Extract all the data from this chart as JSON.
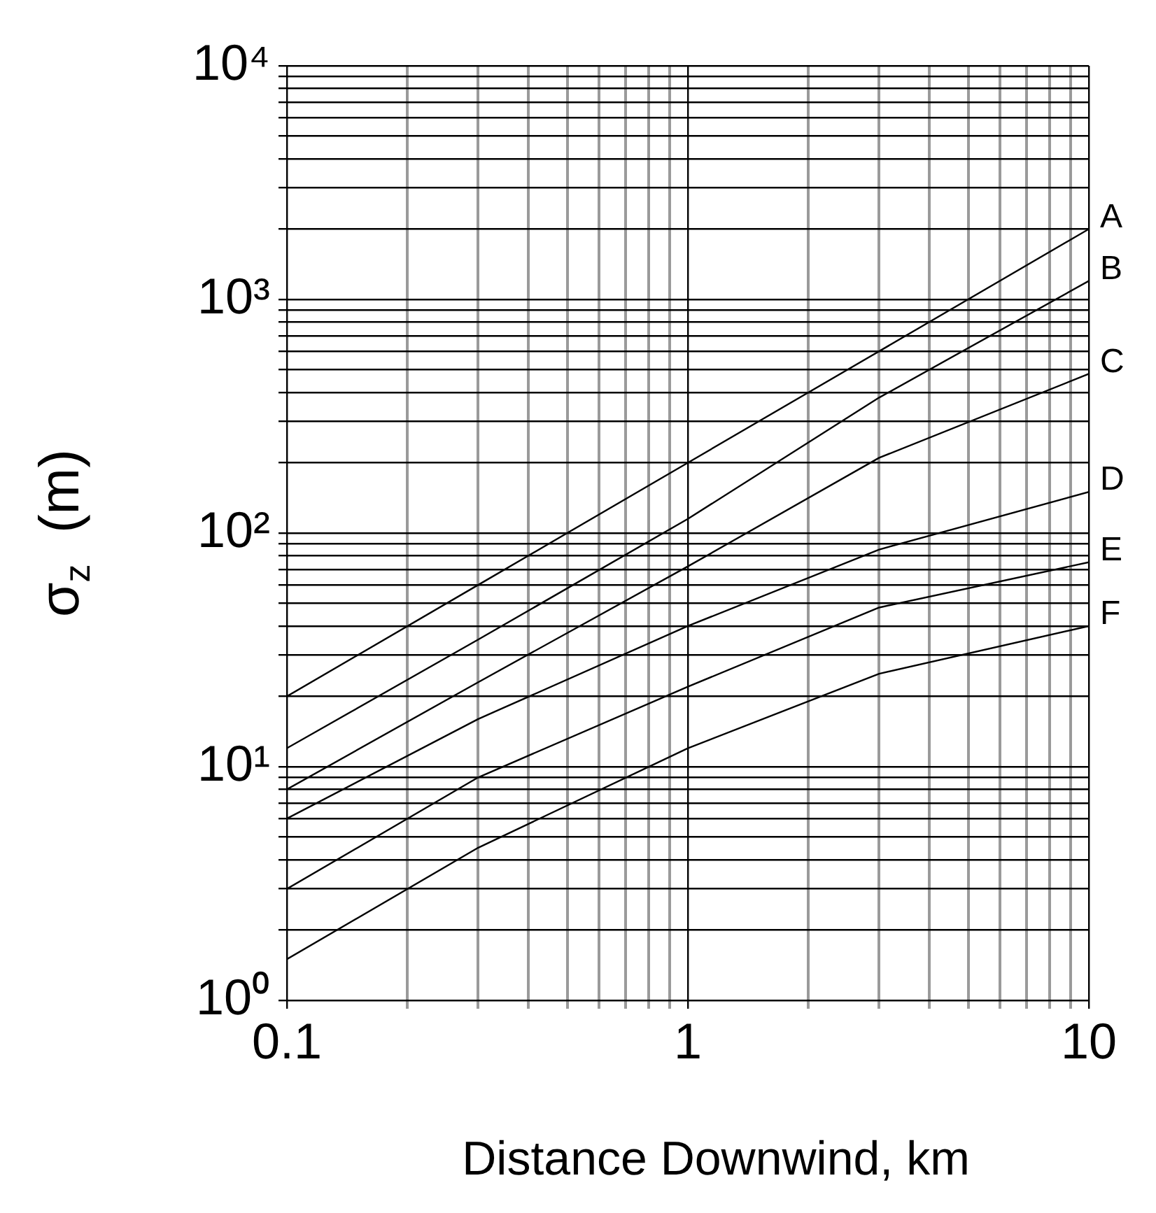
{
  "chart_data": {
    "type": "line",
    "xlabel": "Distance Downwind, km",
    "ylabel": "σ$_{z}$  (m)",
    "log": "xy",
    "grid": true,
    "legend": false,
    "marker": "none",
    "line_style": "solid",
    "x": [
      0.1,
      0.3,
      1,
      3,
      10
    ],
    "xlim": [
      0.1,
      10
    ],
    "ylim": [
      1,
      10000
    ],
    "xticks": [
      0.1,
      {
        "value": 0.2,
        "label": null
      },
      {
        "value": 0.3,
        "label": null
      },
      {
        "value": 0.4,
        "label": null
      },
      {
        "value": 0.5,
        "label": null
      },
      {
        "value": 0.6,
        "label": null
      },
      {
        "value": 0.7,
        "label": null
      },
      {
        "value": 0.8,
        "label": null
      },
      {
        "value": 0.9,
        "label": null
      },
      1,
      {
        "value": 2,
        "label": null
      },
      {
        "value": 3,
        "label": null
      },
      {
        "value": 4,
        "label": null
      },
      {
        "value": 5,
        "label": null
      },
      {
        "value": 6,
        "label": null
      },
      {
        "value": 7,
        "label": null
      },
      {
        "value": 8,
        "label": null
      },
      {
        "value": 9,
        "label": null
      },
      10
    ],
    "yticks": [
      {
        "value": 1,
        "label": "10⁰"
      },
      {
        "value": 2,
        "label": null
      },
      {
        "value": 3,
        "label": null
      },
      {
        "value": 4,
        "label": null
      },
      {
        "value": 5,
        "label": null
      },
      {
        "value": 6,
        "label": null
      },
      {
        "value": 7,
        "label": null
      },
      {
        "value": 8,
        "label": null
      },
      {
        "value": 9,
        "label": null
      },
      {
        "value": 10,
        "label": "10¹"
      },
      {
        "value": 20,
        "label": null
      },
      {
        "value": 30,
        "label": null
      },
      {
        "value": 40,
        "label": null
      },
      {
        "value": 50,
        "label": null
      },
      {
        "value": 60,
        "label": null
      },
      {
        "value": 70,
        "label": null
      },
      {
        "value": 80,
        "label": null
      },
      {
        "value": 90,
        "label": null
      },
      {
        "value": 100,
        "label": "10²"
      },
      {
        "value": 200,
        "label": null
      },
      {
        "value": 300,
        "label": null
      },
      {
        "value": 400,
        "label": null
      },
      {
        "value": 500,
        "label": null
      },
      {
        "value": 600,
        "label": null
      },
      {
        "value": 700,
        "label": null
      },
      {
        "value": 800,
        "label": null
      },
      {
        "value": 900,
        "label": null
      },
      {
        "value": 1000,
        "label": "10³"
      },
      {
        "value": 2000,
        "label": null
      },
      {
        "value": 3000,
        "label": null
      },
      {
        "value": 4000,
        "label": null
      },
      {
        "value": 5000,
        "label": null
      },
      {
        "value": 6000,
        "label": null
      },
      {
        "value": 7000,
        "label": null
      },
      {
        "value": 8000,
        "label": null
      },
      {
        "value": 9000,
        "label": null
      },
      {
        "value": 10000,
        "label": "10⁴"
      }
    ],
    "series": [
      {
        "name": "A",
        "color": "#000000",
        "values": [
          20,
          60,
          200,
          600,
          2000
        ]
      },
      {
        "name": "B",
        "color": "#000000",
        "values": [
          12,
          35,
          115,
          380,
          1200
        ]
      },
      {
        "name": "C",
        "color": "#000000",
        "values": [
          8,
          23,
          72,
          210,
          480
        ]
      },
      {
        "name": "D",
        "color": "#000000",
        "values": [
          6,
          16,
          40,
          85,
          150
        ]
      },
      {
        "name": "E",
        "color": "#000000",
        "values": [
          3,
          9,
          22,
          48,
          75
        ]
      },
      {
        "name": "F",
        "color": "#000000",
        "values": [
          1.5,
          4.5,
          12,
          25,
          40
        ]
      }
    ]
  }
}
